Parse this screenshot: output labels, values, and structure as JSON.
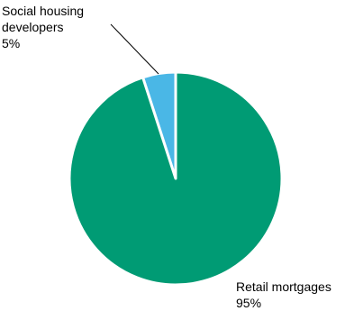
{
  "chart_data": {
    "type": "pie",
    "title": "",
    "slices": [
      {
        "label_lines": [
          "Social housing",
          "developers"
        ],
        "value": 5,
        "value_label": "5%",
        "color": "#4ab7e6"
      },
      {
        "label_lines": [
          "Retail mortgages"
        ],
        "value": 95,
        "value_label": "95%",
        "color": "#009b74"
      }
    ],
    "start_angle_deg": 0,
    "direction": "counterclockwise",
    "slice_border_color": "#ffffff",
    "leader_line_color": "#000000",
    "legend": "none"
  }
}
